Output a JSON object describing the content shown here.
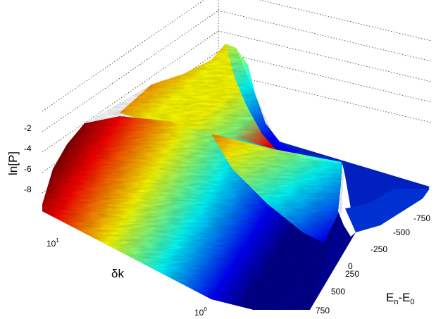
{
  "chart_data": {
    "type": "surface",
    "zlabel": "ln[P]",
    "xlabel": "E_n-E_0",
    "xlabel_parts": {
      "main": "E",
      "sub1": "n",
      "mid": "-E",
      "sub2": "0"
    },
    "ylabel": "δk",
    "z_ticks": [
      -2,
      -4,
      -6,
      -8
    ],
    "z_tick_labels": [
      "-2",
      "-4",
      "-6",
      "-8"
    ],
    "x_ticks": [
      750,
      500,
      250,
      0,
      -250,
      -500,
      -750
    ],
    "x_tick_labels": [
      "750",
      "500",
      "250",
      "0",
      "-250",
      "-500",
      "-750"
    ],
    "y_ticks": [
      10,
      1
    ],
    "y_tick_labels": [
      {
        "base": "10",
        "exp": "1"
      },
      {
        "base": "10",
        "exp": "0"
      }
    ],
    "xlim": [
      -900,
      900
    ],
    "y_scale": "log",
    "zlim": [
      -10,
      -1
    ],
    "grid": true,
    "colormap": [
      "#00008f",
      "#0000ff",
      "#0080ff",
      "#00ffff",
      "#80ff80",
      "#ffff00",
      "#ff8000",
      "#ff0000",
      "#800000"
    ],
    "peak_z": -1.6,
    "floor_z": -10
  }
}
